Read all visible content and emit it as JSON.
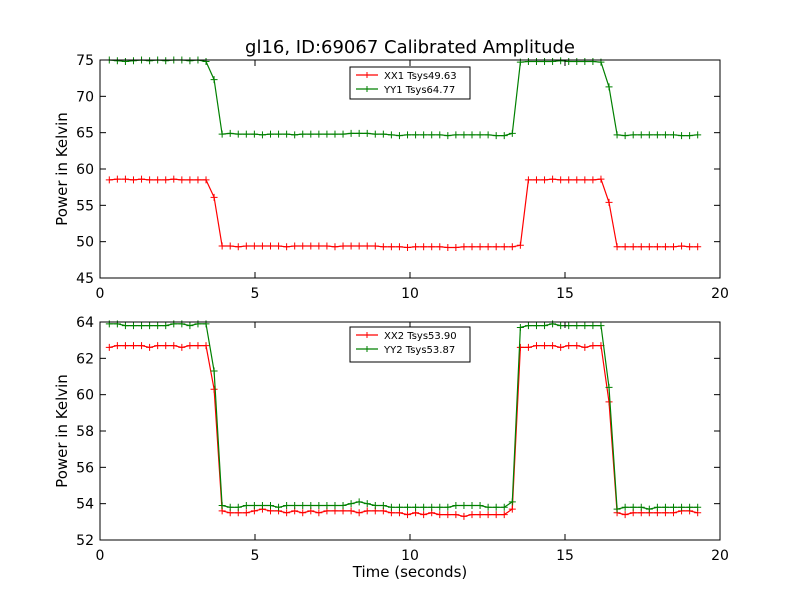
{
  "figure": {
    "title": "gl16, ID:69067 Calibrated Amplitude"
  },
  "chart_data": [
    {
      "type": "line",
      "title": "gl16, ID:69067 Calibrated Amplitude",
      "xlabel": "",
      "ylabel": "Power in Kelvin",
      "xlim": [
        0,
        20
      ],
      "ylim": [
        45,
        75
      ],
      "xticks": [
        0,
        5,
        10,
        15,
        20
      ],
      "yticks": [
        45,
        50,
        55,
        60,
        65,
        70,
        75
      ],
      "grid": false,
      "legend": "top-center",
      "x": [
        0.3,
        0.56,
        0.82,
        1.08,
        1.34,
        1.6,
        1.86,
        2.12,
        2.38,
        2.64,
        2.9,
        3.16,
        3.42,
        3.68,
        3.94,
        4.2,
        4.46,
        4.72,
        4.98,
        5.24,
        5.5,
        5.76,
        6.02,
        6.28,
        6.54,
        6.8,
        7.06,
        7.32,
        7.58,
        7.84,
        8.1,
        8.36,
        8.62,
        8.88,
        9.14,
        9.4,
        9.66,
        9.92,
        10.18,
        10.44,
        10.7,
        10.96,
        11.22,
        11.48,
        11.74,
        12.0,
        12.26,
        12.52,
        12.78,
        13.04,
        13.3,
        13.56,
        13.82,
        14.08,
        14.34,
        14.6,
        14.86,
        15.12,
        15.38,
        15.64,
        15.9,
        16.16,
        16.42,
        16.68,
        16.94,
        17.2,
        17.46,
        17.72,
        17.98,
        18.24,
        18.5,
        18.76,
        19.02,
        19.28
      ],
      "series": [
        {
          "name": "XX1 Tsys49.63",
          "color": "#ff0000",
          "values": [
            58.5,
            58.6,
            58.6,
            58.5,
            58.6,
            58.5,
            58.5,
            58.5,
            58.6,
            58.5,
            58.5,
            58.5,
            58.5,
            56.1,
            49.4,
            49.4,
            49.3,
            49.4,
            49.4,
            49.4,
            49.4,
            49.4,
            49.3,
            49.4,
            49.4,
            49.4,
            49.4,
            49.4,
            49.3,
            49.4,
            49.4,
            49.4,
            49.4,
            49.4,
            49.3,
            49.3,
            49.3,
            49.2,
            49.3,
            49.3,
            49.3,
            49.3,
            49.2,
            49.2,
            49.3,
            49.3,
            49.3,
            49.3,
            49.3,
            49.3,
            49.3,
            49.5,
            58.5,
            58.5,
            58.5,
            58.6,
            58.5,
            58.5,
            58.5,
            58.5,
            58.5,
            58.6,
            55.4,
            49.3,
            49.3,
            49.3,
            49.3,
            49.3,
            49.3,
            49.3,
            49.3,
            49.4,
            49.3,
            49.3
          ]
        },
        {
          "name": "YY1 Tsys64.77",
          "color": "#008000",
          "values": [
            75.0,
            74.9,
            74.8,
            74.9,
            75.0,
            74.9,
            75.0,
            74.9,
            75.0,
            75.0,
            74.9,
            75.0,
            74.8,
            72.3,
            64.8,
            64.9,
            64.8,
            64.8,
            64.8,
            64.7,
            64.8,
            64.8,
            64.8,
            64.7,
            64.8,
            64.8,
            64.8,
            64.8,
            64.8,
            64.8,
            64.9,
            64.9,
            64.9,
            64.8,
            64.8,
            64.7,
            64.6,
            64.7,
            64.7,
            64.7,
            64.7,
            64.7,
            64.6,
            64.7,
            64.7,
            64.7,
            64.7,
            64.7,
            64.6,
            64.6,
            64.9,
            74.7,
            74.8,
            74.8,
            74.8,
            74.8,
            74.9,
            74.8,
            74.8,
            74.8,
            74.8,
            74.7,
            71.3,
            64.7,
            64.6,
            64.7,
            64.7,
            64.7,
            64.7,
            64.7,
            64.7,
            64.6,
            64.6,
            64.7
          ]
        }
      ]
    },
    {
      "type": "line",
      "title": "",
      "xlabel": "Time (seconds)",
      "ylabel": "Power in Kelvin",
      "xlim": [
        0,
        20
      ],
      "ylim": [
        52,
        64
      ],
      "xticks": [
        0,
        5,
        10,
        15,
        20
      ],
      "yticks": [
        52,
        54,
        56,
        58,
        60,
        62,
        64
      ],
      "grid": false,
      "legend": "top-center",
      "x": [
        0.3,
        0.56,
        0.82,
        1.08,
        1.34,
        1.6,
        1.86,
        2.12,
        2.38,
        2.64,
        2.9,
        3.16,
        3.42,
        3.68,
        3.94,
        4.2,
        4.46,
        4.72,
        4.98,
        5.24,
        5.5,
        5.76,
        6.02,
        6.28,
        6.54,
        6.8,
        7.06,
        7.32,
        7.58,
        7.84,
        8.1,
        8.36,
        8.62,
        8.88,
        9.14,
        9.4,
        9.66,
        9.92,
        10.18,
        10.44,
        10.7,
        10.96,
        11.22,
        11.48,
        11.74,
        12.0,
        12.26,
        12.52,
        12.78,
        13.04,
        13.3,
        13.56,
        13.82,
        14.08,
        14.34,
        14.6,
        14.86,
        15.12,
        15.38,
        15.64,
        15.9,
        16.16,
        16.42,
        16.68,
        16.94,
        17.2,
        17.46,
        17.72,
        17.98,
        18.24,
        18.5,
        18.76,
        19.02,
        19.28
      ],
      "series": [
        {
          "name": "XX2 Tsys53.90",
          "color": "#ff0000",
          "values": [
            62.6,
            62.7,
            62.7,
            62.7,
            62.7,
            62.6,
            62.7,
            62.7,
            62.7,
            62.6,
            62.7,
            62.7,
            62.7,
            60.3,
            53.6,
            53.5,
            53.5,
            53.5,
            53.6,
            53.7,
            53.6,
            53.6,
            53.5,
            53.6,
            53.5,
            53.6,
            53.5,
            53.6,
            53.6,
            53.6,
            53.6,
            53.5,
            53.6,
            53.6,
            53.6,
            53.5,
            53.5,
            53.4,
            53.5,
            53.4,
            53.5,
            53.4,
            53.4,
            53.4,
            53.3,
            53.4,
            53.4,
            53.4,
            53.4,
            53.4,
            53.7,
            62.6,
            62.6,
            62.7,
            62.7,
            62.7,
            62.6,
            62.7,
            62.7,
            62.6,
            62.7,
            62.7,
            59.6,
            53.5,
            53.4,
            53.5,
            53.5,
            53.5,
            53.5,
            53.5,
            53.5,
            53.6,
            53.6,
            53.5
          ]
        },
        {
          "name": "YY2 Tsys53.87",
          "color": "#008000",
          "values": [
            63.9,
            63.9,
            63.8,
            63.8,
            63.8,
            63.8,
            63.8,
            63.8,
            63.9,
            63.9,
            63.8,
            63.9,
            63.9,
            61.3,
            53.9,
            53.8,
            53.8,
            53.9,
            53.9,
            53.9,
            53.9,
            53.8,
            53.9,
            53.9,
            53.9,
            53.9,
            53.9,
            53.9,
            53.9,
            53.9,
            54.0,
            54.1,
            54.0,
            53.9,
            53.9,
            53.8,
            53.8,
            53.8,
            53.8,
            53.8,
            53.8,
            53.8,
            53.8,
            53.9,
            53.9,
            53.9,
            53.9,
            53.8,
            53.8,
            53.8,
            54.1,
            63.7,
            63.8,
            63.8,
            63.8,
            63.9,
            63.8,
            63.8,
            63.8,
            63.8,
            63.8,
            63.8,
            60.4,
            53.7,
            53.8,
            53.8,
            53.8,
            53.7,
            53.8,
            53.8,
            53.8,
            53.8,
            53.8,
            53.8
          ]
        }
      ]
    }
  ]
}
